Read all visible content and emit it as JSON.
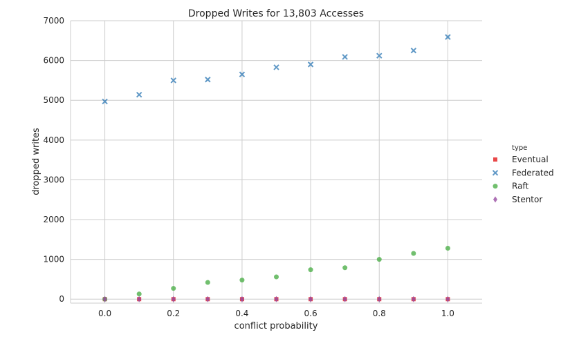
{
  "chart_data": {
    "type": "scatter",
    "title": "Dropped Writes for 13,803 Accesses",
    "xlabel": "conflict probability",
    "ylabel": "dropped writes",
    "xlim": [
      -0.1,
      1.1
    ],
    "ylim": [
      -100,
      7000
    ],
    "x_ticks": [
      "0.0",
      "0.2",
      "0.4",
      "0.6",
      "0.8",
      "1.0"
    ],
    "y_ticks": [
      "0",
      "1000",
      "2000",
      "3000",
      "4000",
      "5000",
      "6000",
      "7000"
    ],
    "grid": true,
    "legend": {
      "title": "type",
      "placement": "right"
    },
    "x": [
      0.0,
      0.1,
      0.2,
      0.3,
      0.4,
      0.5,
      0.6,
      0.7,
      0.8,
      0.9,
      1.0
    ],
    "series": [
      {
        "name": "Eventual",
        "marker": "square",
        "color": "#e41a1c",
        "values": [
          0,
          0,
          0,
          0,
          0,
          0,
          0,
          0,
          0,
          0,
          0
        ]
      },
      {
        "name": "Federated",
        "marker": "x",
        "color": "#377eb8",
        "values": [
          4970,
          5140,
          5500,
          5520,
          5650,
          5830,
          5900,
          6090,
          6120,
          6250,
          6590
        ]
      },
      {
        "name": "Raft",
        "marker": "circle",
        "color": "#4daf4a",
        "values": [
          0,
          130,
          270,
          420,
          480,
          560,
          740,
          790,
          1000,
          1150,
          1280
        ]
      },
      {
        "name": "Stentor",
        "marker": "diamond",
        "color": "#984ea3",
        "values": [
          0,
          0,
          0,
          0,
          0,
          0,
          0,
          0,
          0,
          0,
          0
        ]
      }
    ]
  }
}
